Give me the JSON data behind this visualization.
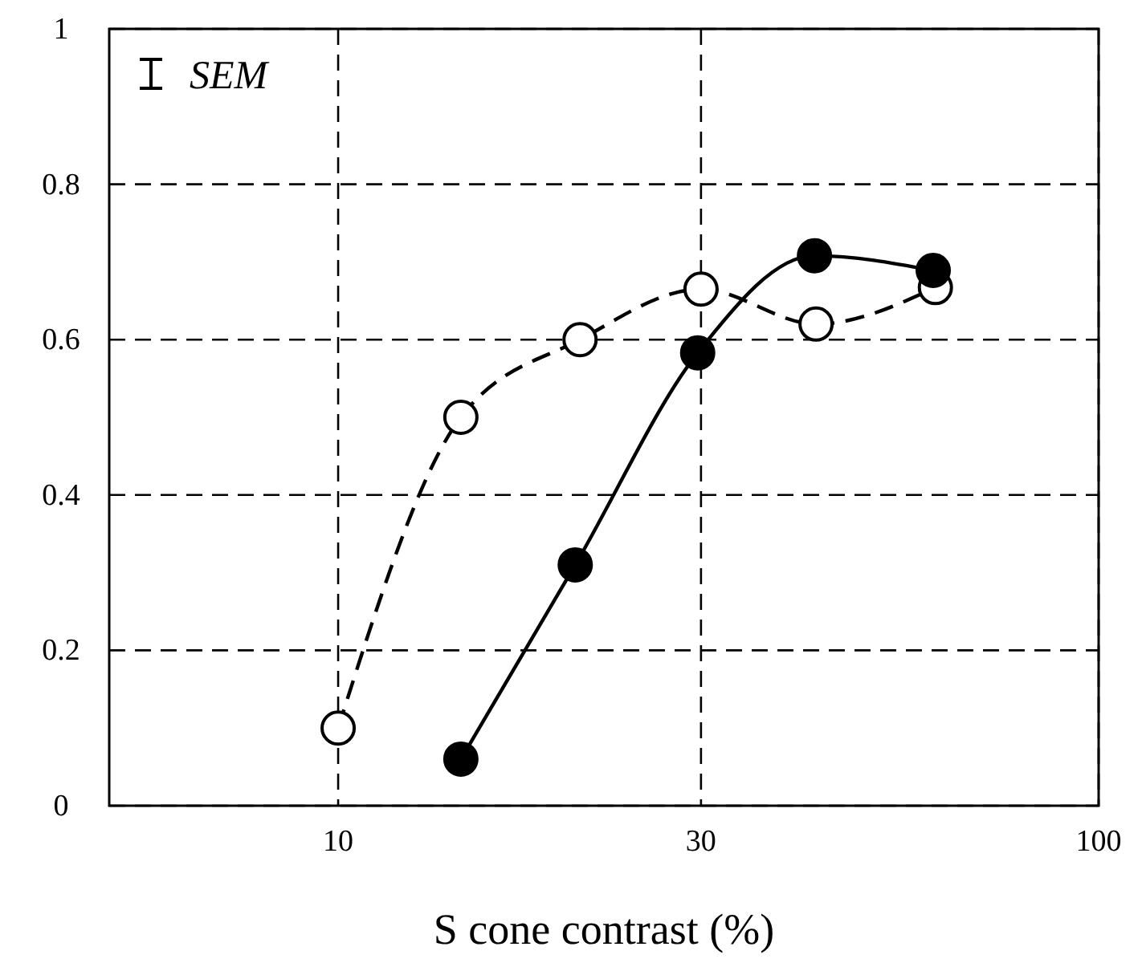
{
  "chart_data": {
    "type": "line",
    "xlabel": "S cone contrast (%)",
    "log": "x",
    "xlim": [
      5,
      100
    ],
    "xticks": [
      10,
      30,
      100
    ],
    "ylim": [
      0,
      1
    ],
    "yticks": [
      0,
      0.2,
      0.4,
      0.6,
      0.8,
      1
    ],
    "grid": true,
    "marker": "circle",
    "annotations": [
      "SEM"
    ],
    "series": [
      {
        "color": "#000000",
        "line_style": "dashed",
        "x": [
          10,
          14.5,
          20.8,
          30,
          42.5,
          61
        ],
        "values": [
          0.1,
          0.5,
          0.6,
          0.665,
          0.62,
          0.667
        ]
      },
      {
        "color": "#000000",
        "line_style": "solid",
        "x": [
          14.5,
          20.5,
          29.7,
          42.3,
          60.6
        ],
        "values": [
          0.06,
          0.31,
          0.583,
          0.708,
          0.689
        ]
      }
    ]
  }
}
